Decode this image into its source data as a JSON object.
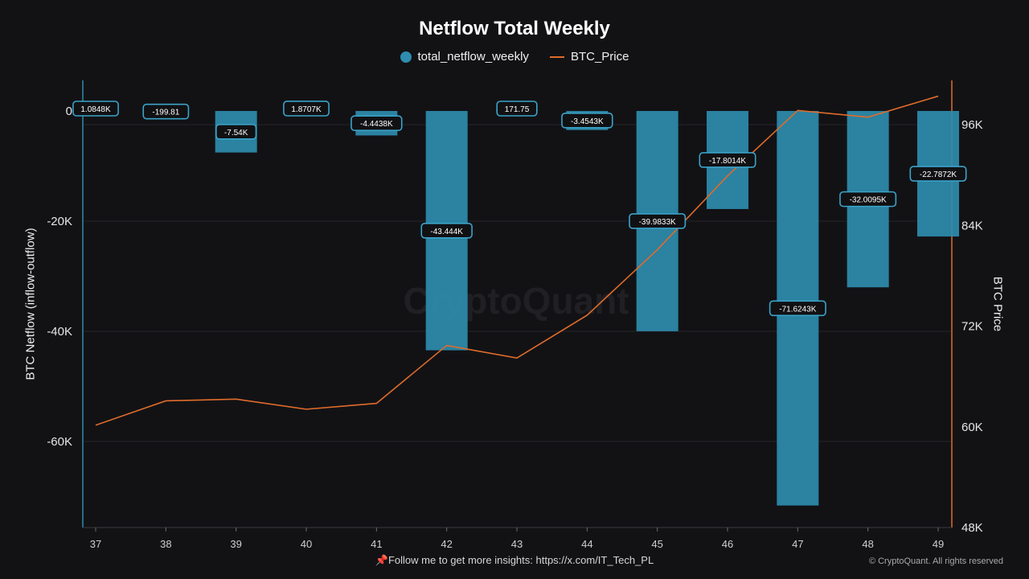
{
  "chart_data": {
    "type": "bar+line",
    "title": "Netflow Total Weekly",
    "legend": [
      "total_netflow_weekly",
      "BTC_Price"
    ],
    "legend_placement": "top-center",
    "xlabel": "",
    "ylabel_left": "BTC Netflow (inflow-outflow)",
    "ylabel_right": "BTC Price",
    "categories": [
      "37",
      "38",
      "39",
      "40",
      "41",
      "42",
      "43",
      "44",
      "45",
      "46",
      "47",
      "48",
      "49"
    ],
    "series": [
      {
        "name": "total_netflow_weekly",
        "type": "bar",
        "axis": "left",
        "color": "#2e8cae",
        "values": [
          1084.8,
          -199.81,
          -7540,
          1870.7,
          -4443.8,
          -43444,
          171.75,
          -3454.3,
          -39983.3,
          -17801.4,
          -71624.3,
          -32009.5,
          -22787.2
        ],
        "labels": [
          "1.0848K",
          "-199.81",
          "-7.54K",
          "1.8707K",
          "-4.4438K",
          "-43.444K",
          "171.75",
          "-3.4543K",
          "-39.9833K",
          "-17.8014K",
          "-71.6243K",
          "-32.0095K",
          "-22.7872K"
        ]
      },
      {
        "name": "BTC_Price",
        "type": "line",
        "axis": "right",
        "color": "#e06c2a",
        "values": [
          60100,
          63000,
          63200,
          62000,
          62700,
          69600,
          68100,
          73200,
          81000,
          89800,
          97600,
          96800,
          99300
        ]
      }
    ],
    "ylim_left": [
      -75000,
      5000
    ],
    "ylim_right": [
      48000,
      100000
    ],
    "yticks_left": [
      "0",
      "-20K",
      "-40K",
      "-60K"
    ],
    "yticks_right": [
      "96K",
      "84K",
      "72K",
      "60K",
      "48K"
    ],
    "grid": true
  },
  "watermark": "CryptoQuant",
  "footer": "📌Follow me to get more insights: https://x.com/IT_Tech_PL",
  "copyright": "© CryptoQuant. All rights reserved"
}
